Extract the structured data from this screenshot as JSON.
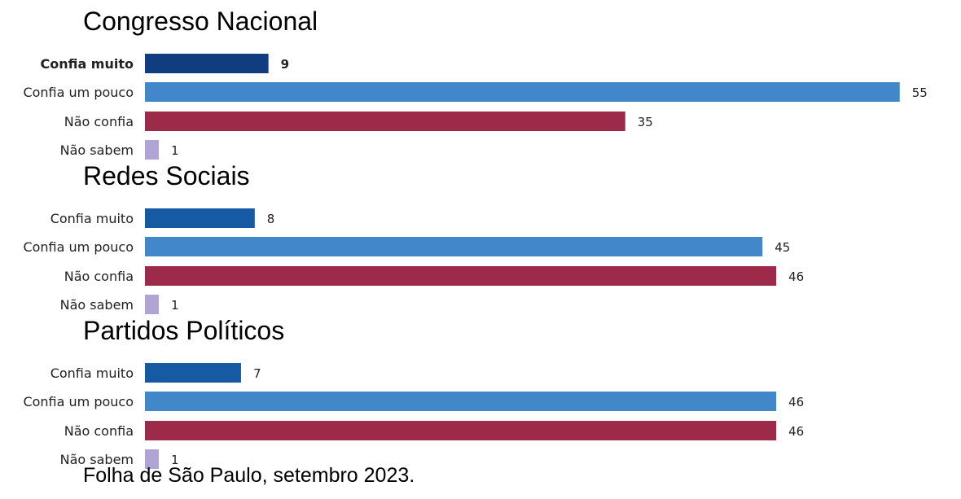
{
  "chart_data": [
    {
      "type": "bar",
      "orientation": "horizontal",
      "title": "Congresso Nacional",
      "categories": [
        "Confia muito",
        "Confia um pouco",
        "Não confia",
        "Não sabem"
      ],
      "values": [
        9,
        55,
        35,
        1
      ],
      "colors": [
        "#0f3d7f",
        "#4287c9",
        "#9e2a49",
        "#b0a4d4"
      ],
      "highlight_index": 0
    },
    {
      "type": "bar",
      "orientation": "horizontal",
      "title": "Redes Sociais",
      "categories": [
        "Confia muito",
        "Confia um pouco",
        "Não confia",
        "Não sabem"
      ],
      "values": [
        8,
        45,
        46,
        1
      ],
      "colors": [
        "#155aa3",
        "#4287c9",
        "#9e2a49",
        "#b0a4d4"
      ]
    },
    {
      "type": "bar",
      "orientation": "horizontal",
      "title": "Partidos Políticos",
      "categories": [
        "Confia muito",
        "Confia um pouco",
        "Não confia",
        "Não sabem"
      ],
      "values": [
        7,
        46,
        46,
        1
      ],
      "colors": [
        "#155aa3",
        "#4287c9",
        "#9e2a49",
        "#b0a4d4"
      ]
    }
  ],
  "source": "Folha de São Paulo, setembro 2023."
}
